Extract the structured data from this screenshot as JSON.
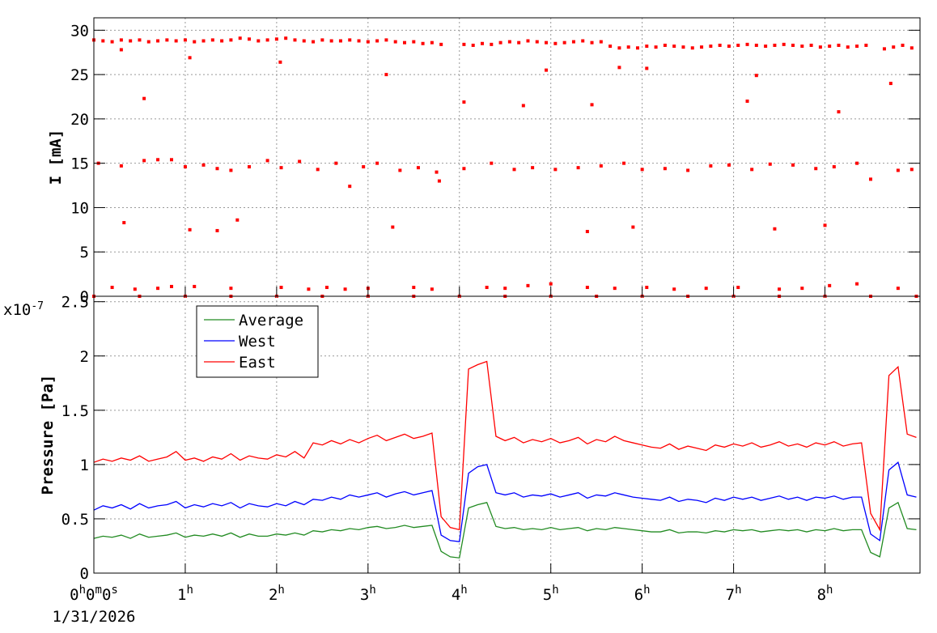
{
  "chart_data": [
    {
      "type": "scatter",
      "y_label": "I [mA]",
      "color": "#ff0000",
      "xlim": [
        0,
        9.04
      ],
      "xticks": [
        0,
        1,
        2,
        3,
        4,
        5,
        6,
        7,
        8
      ],
      "ylim": [
        0,
        31.4
      ],
      "yticks": [
        0,
        5,
        10,
        15,
        20,
        25,
        30
      ],
      "grid": true,
      "x": [
        0,
        0.1,
        0.2,
        0.3,
        0.4,
        0.5,
        0.6,
        0.7,
        0.8,
        0.9,
        1.0,
        1.1,
        1.2,
        1.3,
        1.4,
        1.5,
        1.6,
        1.7,
        1.8,
        1.9,
        2.0,
        2.1,
        2.2,
        2.3,
        2.4,
        2.5,
        2.6,
        2.7,
        2.8,
        2.9,
        3.0,
        3.1,
        3.2,
        3.3,
        3.4,
        3.5,
        3.6,
        3.7,
        3.8,
        4.05,
        4.15,
        4.25,
        4.35,
        4.45,
        4.55,
        4.65,
        4.75,
        4.85,
        4.95,
        5.05,
        5.15,
        5.25,
        5.35,
        5.45,
        5.55,
        5.65,
        5.75,
        5.85,
        5.95,
        6.05,
        6.15,
        6.25,
        6.35,
        6.45,
        6.55,
        6.65,
        6.75,
        6.85,
        6.95,
        7.05,
        7.15,
        7.25,
        7.35,
        7.45,
        7.55,
        7.65,
        7.75,
        7.85,
        7.95,
        8.05,
        8.15,
        8.25,
        8.35,
        8.45,
        8.65,
        8.75,
        8.85,
        8.95,
        0.05,
        0.3,
        0.55,
        0.7,
        0.85,
        1.0,
        1.2,
        1.35,
        1.5,
        1.7,
        1.9,
        2.05,
        2.25,
        2.45,
        2.65,
        2.8,
        2.95,
        3.1,
        3.35,
        3.55,
        3.75,
        3.78,
        4.05,
        4.35,
        4.6,
        4.8,
        5.05,
        5.3,
        5.55,
        5.8,
        6.0,
        6.25,
        6.5,
        6.75,
        6.95,
        7.2,
        7.4,
        7.65,
        7.9,
        8.1,
        8.35,
        8.5,
        8.8,
        8.95,
        0.2,
        0.45,
        0.7,
        0.85,
        1.1,
        1.5,
        2.05,
        2.35,
        2.55,
        2.75,
        3.0,
        3.5,
        3.7,
        4.3,
        4.5,
        4.75,
        5.0,
        5.4,
        5.7,
        6.05,
        6.35,
        6.7,
        7.05,
        7.5,
        7.75,
        8.05,
        8.35,
        8.8,
        0.33,
        0.55,
        1.05,
        1.35,
        1.57,
        2.04,
        3.2,
        3.27,
        4.05,
        4.7,
        5.45,
        5.4,
        5.75,
        5.9,
        6.05,
        7.15,
        7.25,
        7.45,
        8.0,
        8.15,
        8.72,
        1.05,
        0.3,
        4.95,
        0,
        0.5,
        1.0,
        1.5,
        2.0,
        2.5,
        3.0,
        3.5,
        4.0,
        4.5,
        5.0,
        5.5,
        6.0,
        6.5,
        7.0,
        7.5,
        8.0,
        8.5,
        9.0
      ],
      "values": [
        28.9,
        28.8,
        28.7,
        28.9,
        28.8,
        28.9,
        28.7,
        28.8,
        28.9,
        28.8,
        28.9,
        28.7,
        28.8,
        28.9,
        28.8,
        28.9,
        29.1,
        29.0,
        28.8,
        28.9,
        29.0,
        29.1,
        28.9,
        28.8,
        28.7,
        28.9,
        28.8,
        28.8,
        28.9,
        28.8,
        28.7,
        28.8,
        28.9,
        28.7,
        28.6,
        28.7,
        28.5,
        28.6,
        28.4,
        28.4,
        28.3,
        28.5,
        28.4,
        28.6,
        28.7,
        28.6,
        28.8,
        28.7,
        28.6,
        28.5,
        28.6,
        28.7,
        28.8,
        28.6,
        28.7,
        28.2,
        28.0,
        28.1,
        28.0,
        28.2,
        28.1,
        28.3,
        28.2,
        28.1,
        28.0,
        28.1,
        28.2,
        28.3,
        28.2,
        28.3,
        28.4,
        28.3,
        28.2,
        28.3,
        28.4,
        28.3,
        28.2,
        28.3,
        28.1,
        28.2,
        28.3,
        28.1,
        28.2,
        28.3,
        27.9,
        28.1,
        28.3,
        28.0,
        15.0,
        14.7,
        15.3,
        15.4,
        15.4,
        14.6,
        14.8,
        14.4,
        14.2,
        14.6,
        15.3,
        14.5,
        15.2,
        14.3,
        15.0,
        12.4,
        14.6,
        15.0,
        14.2,
        14.5,
        14.0,
        13.0,
        14.4,
        15.0,
        14.3,
        14.5,
        14.3,
        14.5,
        14.7,
        15.0,
        14.3,
        14.4,
        14.2,
        14.7,
        14.8,
        14.3,
        14.9,
        14.8,
        14.4,
        14.6,
        15.0,
        13.2,
        14.2,
        14.3,
        1.0,
        0.8,
        0.9,
        1.1,
        1.1,
        0.9,
        1.0,
        0.8,
        1.0,
        0.8,
        0.9,
        1.0,
        0.8,
        1.0,
        0.9,
        1.2,
        1.4,
        1.0,
        0.9,
        1.0,
        0.8,
        0.9,
        1.0,
        0.8,
        0.9,
        1.2,
        1.4,
        0.9,
        8.3,
        22.3,
        7.5,
        7.4,
        8.6,
        26.4,
        25.0,
        7.8,
        21.9,
        21.5,
        21.6,
        7.3,
        25.8,
        7.8,
        25.7,
        22.0,
        24.9,
        7.6,
        8.0,
        20.8,
        24.0,
        26.9,
        27.8,
        25.5,
        0,
        0,
        0,
        0,
        0,
        0,
        0,
        0,
        0,
        0,
        0,
        0,
        0,
        0,
        0,
        0,
        0,
        0,
        0
      ]
    },
    {
      "type": "line",
      "y_label": "Pressure [Pa]",
      "y_multiplier": {
        "base": "x10",
        "exponent": "-7"
      },
      "date_label": "1/31/2026",
      "legend": "top-left",
      "grid": true,
      "xlim": [
        0,
        9.04
      ],
      "xticks": [
        {
          "value": 0,
          "label": "0h0m0s"
        },
        {
          "value": 1,
          "label": "1h"
        },
        {
          "value": 2,
          "label": "2h"
        },
        {
          "value": 3,
          "label": "3h"
        },
        {
          "value": 4,
          "label": "4h"
        },
        {
          "value": 5,
          "label": "5h"
        },
        {
          "value": 6,
          "label": "6h"
        },
        {
          "value": 7,
          "label": "7h"
        },
        {
          "value": 8,
          "label": "8h"
        }
      ],
      "ylim": [
        0,
        2.55
      ],
      "yticks": [
        0,
        0.5,
        1,
        1.5,
        2,
        2.5
      ],
      "x": [
        0,
        0.1,
        0.2,
        0.3,
        0.4,
        0.5,
        0.6,
        0.7,
        0.8,
        0.9,
        1.0,
        1.1,
        1.2,
        1.3,
        1.4,
        1.5,
        1.6,
        1.7,
        1.8,
        1.9,
        2.0,
        2.1,
        2.2,
        2.3,
        2.4,
        2.5,
        2.6,
        2.7,
        2.8,
        2.9,
        3.0,
        3.1,
        3.2,
        3.3,
        3.4,
        3.5,
        3.6,
        3.7,
        3.8,
        3.9,
        4.0,
        4.1,
        4.2,
        4.3,
        4.4,
        4.5,
        4.6,
        4.7,
        4.8,
        4.9,
        5.0,
        5.1,
        5.2,
        5.3,
        5.4,
        5.5,
        5.6,
        5.7,
        5.8,
        5.9,
        6.0,
        6.1,
        6.2,
        6.3,
        6.4,
        6.5,
        6.6,
        6.7,
        6.8,
        6.9,
        7.0,
        7.1,
        7.2,
        7.3,
        7.4,
        7.5,
        7.6,
        7.7,
        7.8,
        7.9,
        8.0,
        8.1,
        8.2,
        8.3,
        8.4,
        8.5,
        8.6,
        8.7,
        8.8,
        8.9,
        9.0
      ],
      "series": [
        {
          "name": "Average",
          "color": "#228b22",
          "values": [
            0.32,
            0.34,
            0.33,
            0.35,
            0.32,
            0.36,
            0.33,
            0.34,
            0.35,
            0.37,
            0.33,
            0.35,
            0.34,
            0.36,
            0.34,
            0.37,
            0.33,
            0.36,
            0.34,
            0.34,
            0.36,
            0.35,
            0.37,
            0.35,
            0.39,
            0.38,
            0.4,
            0.39,
            0.41,
            0.4,
            0.42,
            0.43,
            0.41,
            0.42,
            0.44,
            0.42,
            0.43,
            0.44,
            0.2,
            0.15,
            0.14,
            0.6,
            0.63,
            0.65,
            0.43,
            0.41,
            0.42,
            0.4,
            0.41,
            0.4,
            0.42,
            0.4,
            0.41,
            0.42,
            0.39,
            0.41,
            0.4,
            0.42,
            0.41,
            0.4,
            0.39,
            0.38,
            0.38,
            0.4,
            0.37,
            0.38,
            0.38,
            0.37,
            0.39,
            0.38,
            0.4,
            0.39,
            0.4,
            0.38,
            0.39,
            0.4,
            0.39,
            0.4,
            0.38,
            0.4,
            0.39,
            0.41,
            0.39,
            0.4,
            0.4,
            0.19,
            0.15,
            0.6,
            0.65,
            0.41,
            0.4
          ]
        },
        {
          "name": "West",
          "color": "#0000ff",
          "values": [
            0.58,
            0.62,
            0.6,
            0.63,
            0.59,
            0.64,
            0.6,
            0.62,
            0.63,
            0.66,
            0.6,
            0.63,
            0.61,
            0.64,
            0.62,
            0.65,
            0.6,
            0.64,
            0.62,
            0.61,
            0.64,
            0.62,
            0.66,
            0.63,
            0.68,
            0.67,
            0.7,
            0.68,
            0.72,
            0.7,
            0.72,
            0.74,
            0.7,
            0.73,
            0.75,
            0.72,
            0.74,
            0.76,
            0.35,
            0.3,
            0.29,
            0.92,
            0.98,
            1.0,
            0.74,
            0.72,
            0.74,
            0.7,
            0.72,
            0.71,
            0.73,
            0.7,
            0.72,
            0.74,
            0.69,
            0.72,
            0.71,
            0.74,
            0.72,
            0.7,
            0.69,
            0.68,
            0.67,
            0.7,
            0.66,
            0.68,
            0.67,
            0.65,
            0.69,
            0.67,
            0.7,
            0.68,
            0.7,
            0.67,
            0.69,
            0.71,
            0.68,
            0.7,
            0.67,
            0.7,
            0.69,
            0.71,
            0.68,
            0.7,
            0.7,
            0.36,
            0.3,
            0.95,
            1.02,
            0.72,
            0.7
          ]
        },
        {
          "name": "East",
          "color": "#ff0000",
          "values": [
            1.02,
            1.05,
            1.03,
            1.06,
            1.04,
            1.08,
            1.03,
            1.05,
            1.07,
            1.12,
            1.04,
            1.06,
            1.03,
            1.07,
            1.05,
            1.1,
            1.04,
            1.08,
            1.06,
            1.05,
            1.09,
            1.07,
            1.12,
            1.06,
            1.2,
            1.18,
            1.22,
            1.19,
            1.23,
            1.2,
            1.24,
            1.27,
            1.22,
            1.25,
            1.28,
            1.24,
            1.26,
            1.29,
            0.52,
            0.42,
            0.4,
            1.88,
            1.92,
            1.95,
            1.26,
            1.22,
            1.25,
            1.2,
            1.23,
            1.21,
            1.24,
            1.2,
            1.22,
            1.25,
            1.19,
            1.23,
            1.21,
            1.26,
            1.22,
            1.2,
            1.18,
            1.16,
            1.15,
            1.19,
            1.14,
            1.17,
            1.15,
            1.13,
            1.18,
            1.16,
            1.19,
            1.17,
            1.2,
            1.16,
            1.18,
            1.21,
            1.17,
            1.19,
            1.16,
            1.2,
            1.18,
            1.21,
            1.17,
            1.19,
            1.2,
            0.55,
            0.4,
            1.82,
            1.9,
            1.28,
            1.25
          ]
        }
      ]
    }
  ]
}
